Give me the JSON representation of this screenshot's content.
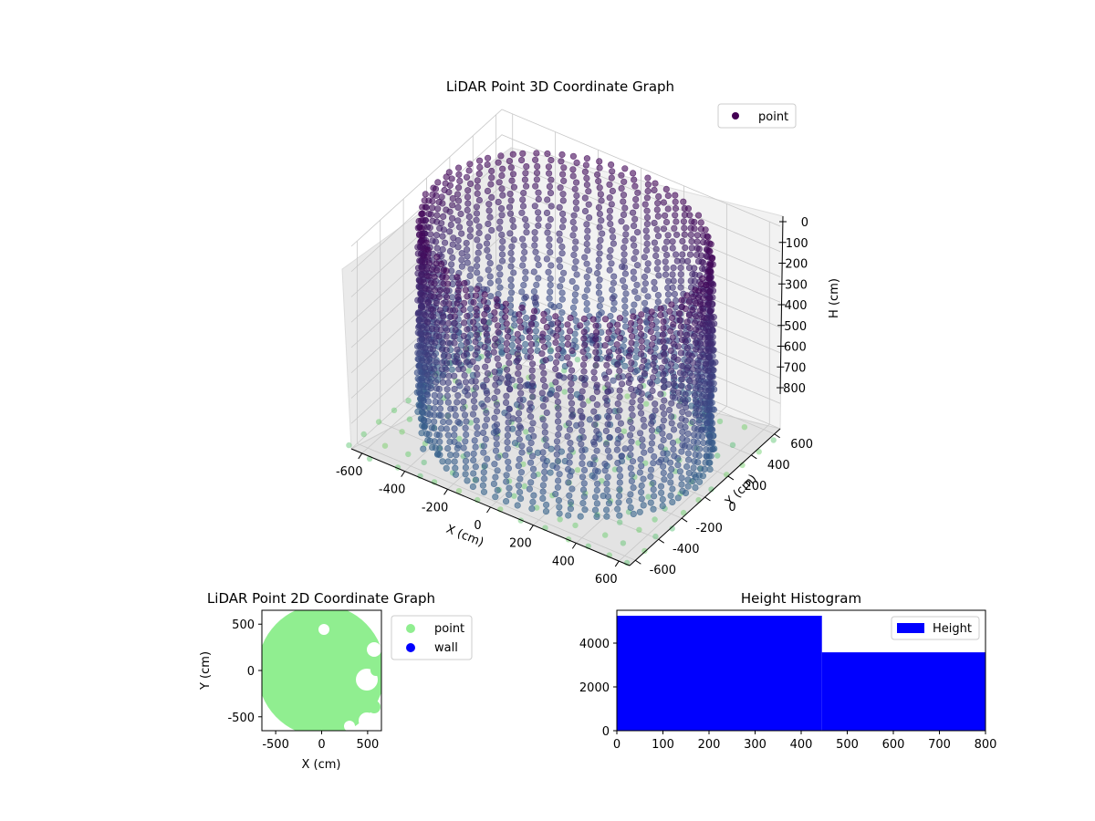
{
  "chart_data": [
    {
      "type": "scatter",
      "projection": "3d",
      "title": "LiDAR Point 3D Coordinate Graph",
      "xlabel": "X (cm)",
      "ylabel": "Y (cm)",
      "zlabel": "H (cm)",
      "xlim": [
        -650,
        650
      ],
      "ylim": [
        -650,
        650
      ],
      "zlim": [
        800,
        0
      ],
      "x_ticks": [
        "-600",
        "-400",
        "-200",
        "0",
        "200",
        "400",
        "600"
      ],
      "y_ticks": [
        "-600",
        "-400",
        "-200",
        "0",
        "200",
        "400",
        "600"
      ],
      "z_ticks": [
        "0",
        "100",
        "200",
        "300",
        "400",
        "500",
        "600",
        "700",
        "800"
      ],
      "legend": {
        "placement": "upper-right",
        "entries": [
          {
            "name": "point",
            "color": "#440154"
          }
        ]
      },
      "grid": true,
      "colormap": "viridis",
      "series": [
        {
          "name": "point",
          "shape": "cylindrical wall scan, radius ~600 cm, height 0–800 cm, plus scattered floor points"
        }
      ]
    },
    {
      "type": "scatter",
      "title": "LiDAR Point 2D Coordinate Graph",
      "xlabel": "X (cm)",
      "ylabel": "Y (cm)",
      "xlim": [
        -650,
        650
      ],
      "ylim": [
        -650,
        650
      ],
      "x_ticks": [
        "-500",
        "0",
        "500"
      ],
      "y_ticks": [
        "500",
        "0",
        "-500"
      ],
      "legend": {
        "placement": "outside-right",
        "entries": [
          {
            "name": "point",
            "color": "#90ee90"
          },
          {
            "name": "wall",
            "color": "#0000ff"
          }
        ]
      },
      "series": [
        {
          "name": "point",
          "color": "#90ee90"
        },
        {
          "name": "wall",
          "color": "#0000ff"
        }
      ]
    },
    {
      "type": "bar",
      "subtype": "histogram",
      "title": "Height Histogram",
      "xlim": [
        0,
        800
      ],
      "ylim": [
        0,
        5500
      ],
      "x_ticks": [
        "0",
        "100",
        "200",
        "300",
        "400",
        "500",
        "600",
        "700",
        "800"
      ],
      "y_ticks": [
        "0",
        "2000",
        "4000"
      ],
      "bins": [
        {
          "start": 0,
          "end": 445,
          "count": 5250
        },
        {
          "start": 445,
          "end": 800,
          "count": 3580
        }
      ],
      "legend": {
        "placement": "upper-right",
        "entries": [
          {
            "name": "Height",
            "color": "#0000ff"
          }
        ]
      },
      "color": "#0000ff"
    }
  ]
}
